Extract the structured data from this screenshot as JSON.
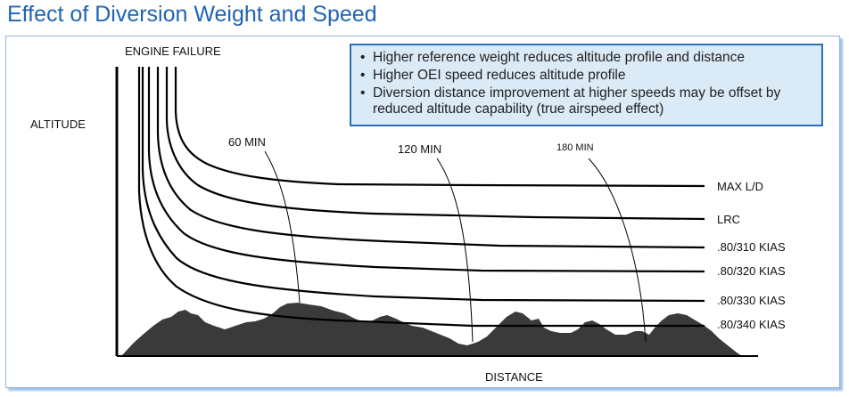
{
  "title": "Effect of Diversion Weight and Speed",
  "notes": {
    "bullet_symbol": "•",
    "items": [
      "Higher reference weight reduces altitude profile and distance",
      "Higher OEI speed reduces altitude profile",
      "Diversion distance improvement at higher speeds may be offset by reduced altitude capability (true airspeed effect)"
    ]
  },
  "diagram": {
    "engine_failure_label": "ENGINE FAILURE",
    "y_axis_label": "ALTITUDE",
    "x_axis_label": "DISTANCE",
    "time_markers": [
      "60 MIN",
      "120 MIN",
      "180 MIN"
    ],
    "curves": [
      {
        "id": "max-ld",
        "label": "MAX L/D"
      },
      {
        "id": "lrc",
        "label": "LRC"
      },
      {
        "id": "310",
        "label": ".80/310 KIAS"
      },
      {
        "id": "320",
        "label": ".80/320 KIAS"
      },
      {
        "id": "330",
        "label": ".80/330 KIAS"
      },
      {
        "id": "340",
        "label": ".80/340 KIAS"
      }
    ],
    "colors": {
      "title": "#1f64b4",
      "note_fill": "#dbeaf7",
      "note_border": "#2a6fb5",
      "terrain": "#3a3a3a",
      "lines": "#000000"
    }
  }
}
